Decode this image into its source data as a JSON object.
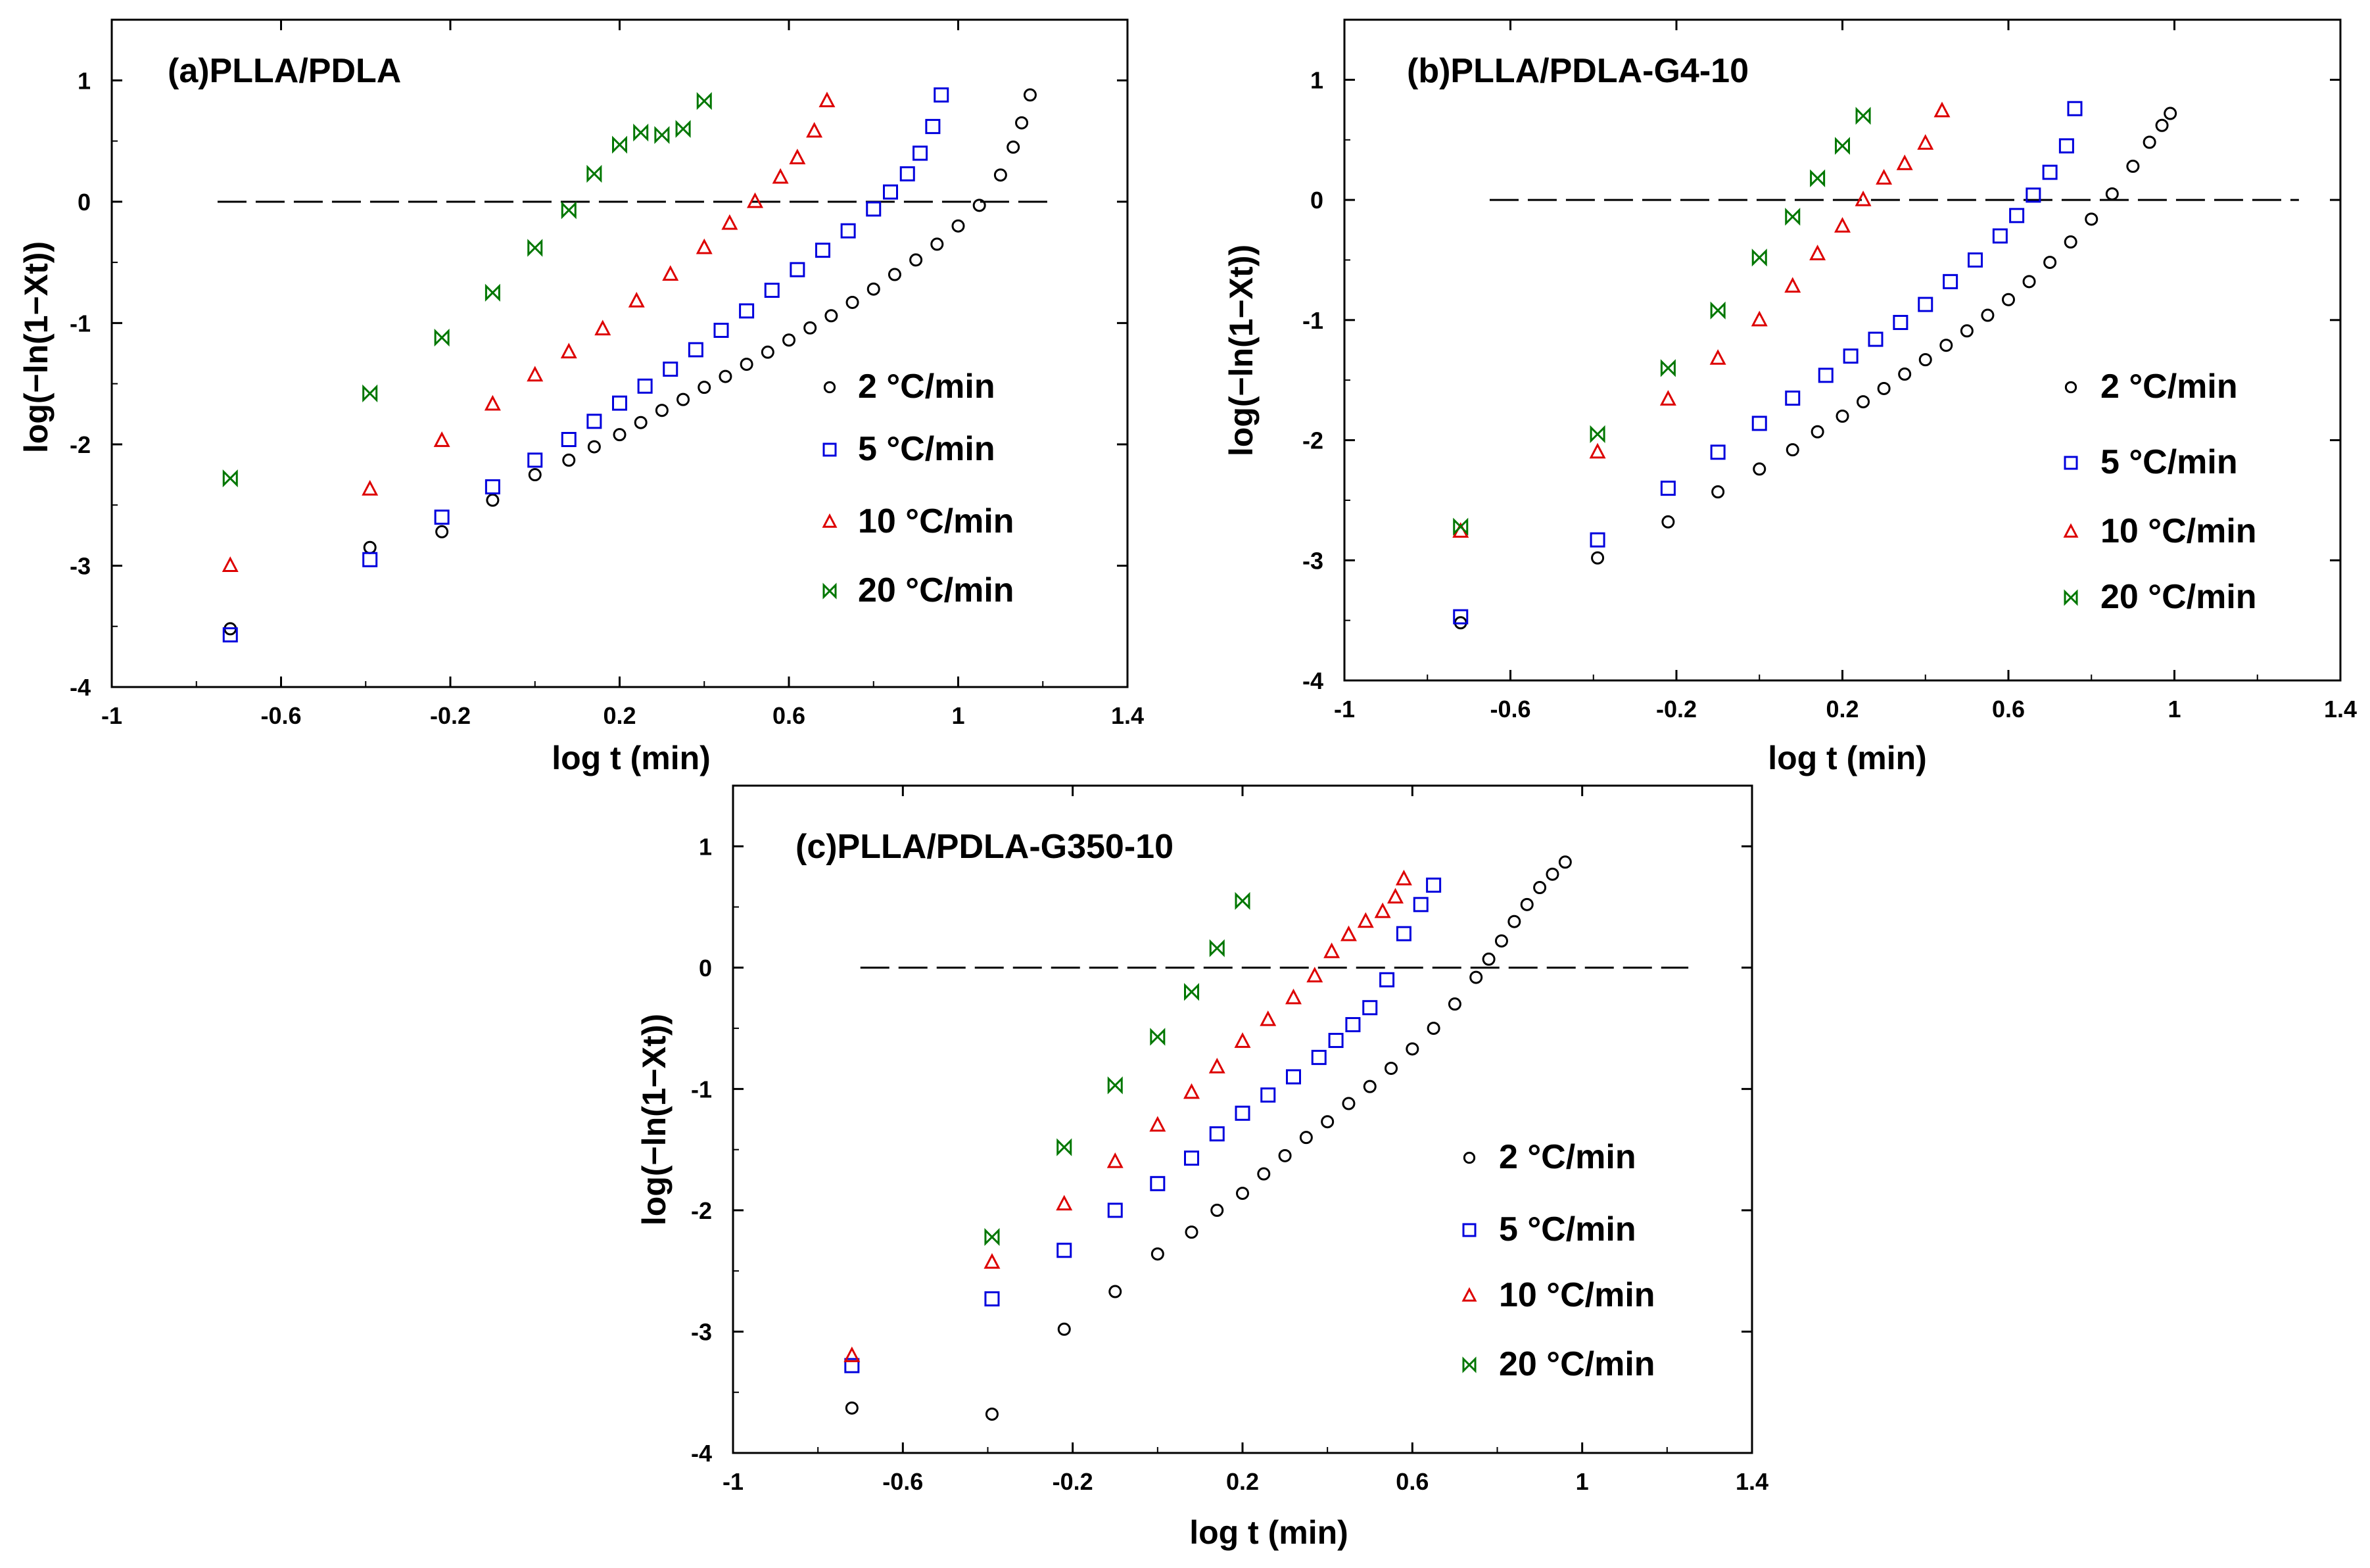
{
  "chart_data": [
    {
      "type": "scatter",
      "title": "(a)PLLA/PDLA",
      "xlabel": "log t (min)",
      "ylabel": "log(−ln(1−Xt))",
      "xlim": [
        -1,
        1.4
      ],
      "ylim": [
        -4,
        1.5
      ],
      "xticks": [
        -1,
        -0.6,
        -0.2,
        0.2,
        0.6,
        1,
        1.4
      ],
      "xtick_labels": [
        "-1",
        "-0.6",
        "-0.2",
        "0.2",
        "0.6",
        "1",
        "1.4"
      ],
      "yticks": [
        -4,
        -3,
        -2,
        -1,
        0,
        1
      ],
      "ytick_labels": [
        "-4",
        "-3",
        "-2",
        "-1",
        "0",
        "1"
      ],
      "reference_line": {
        "y": 0,
        "x_start": -0.75,
        "x_end": 1.22,
        "style": "dashed"
      },
      "legend_position": "right",
      "series": [
        {
          "name": "2 °C/min",
          "marker": "circle",
          "color": "#000000",
          "x": [
            -0.72,
            -0.39,
            -0.22,
            -0.1,
            0.0,
            0.08,
            0.14,
            0.2,
            0.25,
            0.3,
            0.35,
            0.4,
            0.45,
            0.5,
            0.55,
            0.6,
            0.65,
            0.7,
            0.75,
            0.8,
            0.85,
            0.9,
            0.95,
            1.0,
            1.05,
            1.1,
            1.13,
            1.15,
            1.17
          ],
          "y": [
            -3.52,
            -2.85,
            -2.72,
            -2.46,
            -2.25,
            -2.13,
            -2.02,
            -1.92,
            -1.82,
            -1.72,
            -1.63,
            -1.53,
            -1.44,
            -1.34,
            -1.24,
            -1.14,
            -1.04,
            -0.94,
            -0.83,
            -0.72,
            -0.6,
            -0.48,
            -0.35,
            -0.2,
            -0.03,
            0.22,
            0.45,
            0.65,
            0.88
          ]
        },
        {
          "name": "5 °C/min",
          "marker": "square",
          "color": "#0000dd",
          "x": [
            -0.72,
            -0.39,
            -0.22,
            -0.1,
            0.0,
            0.08,
            0.14,
            0.2,
            0.26,
            0.32,
            0.38,
            0.44,
            0.5,
            0.56,
            0.62,
            0.68,
            0.74,
            0.8,
            0.84,
            0.88,
            0.91,
            0.94,
            0.96
          ],
          "y": [
            -3.57,
            -2.95,
            -2.6,
            -2.35,
            -2.13,
            -1.96,
            -1.81,
            -1.66,
            -1.52,
            -1.38,
            -1.22,
            -1.06,
            -0.9,
            -0.73,
            -0.56,
            -0.4,
            -0.24,
            -0.06,
            0.08,
            0.23,
            0.4,
            0.62,
            0.88
          ]
        },
        {
          "name": "10 °C/min",
          "marker": "triangle",
          "color": "#dd0000",
          "x": [
            -0.72,
            -0.39,
            -0.22,
            -0.1,
            0.0,
            0.08,
            0.16,
            0.24,
            0.32,
            0.4,
            0.46,
            0.52,
            0.58,
            0.62,
            0.66,
            0.69
          ],
          "y": [
            -3.0,
            -2.37,
            -1.97,
            -1.67,
            -1.43,
            -1.24,
            -1.05,
            -0.82,
            -0.6,
            -0.38,
            -0.18,
            0.0,
            0.2,
            0.36,
            0.58,
            0.83
          ]
        },
        {
          "name": "20 °C/min",
          "marker": "bowtie",
          "color": "#007700",
          "x": [
            -0.72,
            -0.39,
            -0.22,
            -0.1,
            0.0,
            0.08,
            0.14,
            0.2,
            0.25,
            0.3,
            0.35,
            0.4
          ],
          "y": [
            -2.28,
            -1.58,
            -1.12,
            -0.75,
            -0.38,
            -0.07,
            0.23,
            0.47,
            0.57,
            0.55,
            0.6,
            0.83
          ]
        }
      ]
    },
    {
      "type": "scatter",
      "title": "(b)PLLA/PDLA-G4-10",
      "xlabel": "log t (min)",
      "ylabel": "log(−ln(1−Xt))",
      "xlim": [
        -1,
        1.4
      ],
      "ylim": [
        -4,
        1.5
      ],
      "xticks": [
        -1,
        -0.6,
        -0.2,
        0.2,
        0.6,
        1,
        1.4
      ],
      "xtick_labels": [
        "-1",
        "-0.6",
        "-0.2",
        "0.2",
        "0.6",
        "1",
        "1.4"
      ],
      "yticks": [
        -4,
        -3,
        -2,
        -1,
        0,
        1
      ],
      "ytick_labels": [
        "-4",
        "-3",
        "-2",
        "-1",
        "0",
        "1"
      ],
      "reference_line": {
        "y": 0,
        "x_start": -0.65,
        "x_end": 1.3,
        "style": "dashed"
      },
      "legend_position": "right",
      "series": [
        {
          "name": "2 °C/min",
          "marker": "circle",
          "color": "#000000",
          "x": [
            -0.72,
            -0.39,
            -0.22,
            -0.1,
            0.0,
            0.08,
            0.14,
            0.2,
            0.25,
            0.3,
            0.35,
            0.4,
            0.45,
            0.5,
            0.55,
            0.6,
            0.65,
            0.7,
            0.75,
            0.8,
            0.85,
            0.9,
            0.94,
            0.97,
            0.99
          ],
          "y": [
            -3.52,
            -2.98,
            -2.68,
            -2.43,
            -2.24,
            -2.08,
            -1.93,
            -1.8,
            -1.68,
            -1.57,
            -1.45,
            -1.33,
            -1.21,
            -1.09,
            -0.96,
            -0.83,
            -0.68,
            -0.52,
            -0.35,
            -0.16,
            0.05,
            0.28,
            0.48,
            0.62,
            0.72
          ]
        },
        {
          "name": "5 °C/min",
          "marker": "square",
          "color": "#0000dd",
          "x": [
            -0.72,
            -0.39,
            -0.22,
            -0.1,
            0.0,
            0.08,
            0.16,
            0.22,
            0.28,
            0.34,
            0.4,
            0.46,
            0.52,
            0.58,
            0.62,
            0.66,
            0.7,
            0.74,
            0.76
          ],
          "y": [
            -3.47,
            -2.83,
            -2.4,
            -2.1,
            -1.86,
            -1.65,
            -1.46,
            -1.3,
            -1.16,
            -1.02,
            -0.87,
            -0.68,
            -0.5,
            -0.3,
            -0.13,
            0.04,
            0.23,
            0.45,
            0.76
          ]
        },
        {
          "name": "10 °C/min",
          "marker": "triangle",
          "color": "#dd0000",
          "x": [
            -0.72,
            -0.39,
            -0.22,
            -0.1,
            0.0,
            0.08,
            0.14,
            0.2,
            0.25,
            0.3,
            0.35,
            0.4,
            0.44
          ],
          "y": [
            -2.76,
            -2.1,
            -1.66,
            -1.32,
            -1.0,
            -0.72,
            -0.45,
            -0.22,
            0.0,
            0.18,
            0.3,
            0.47,
            0.74
          ]
        },
        {
          "name": "20 °C/min",
          "marker": "bowtie",
          "color": "#007700",
          "x": [
            -0.72,
            -0.39,
            -0.22,
            -0.1,
            0.0,
            0.08,
            0.14,
            0.2,
            0.25
          ],
          "y": [
            -2.72,
            -1.95,
            -1.4,
            -0.92,
            -0.48,
            -0.14,
            0.18,
            0.45,
            0.7
          ]
        }
      ]
    },
    {
      "type": "scatter",
      "title": "(c)PLLA/PDLA-G350-10",
      "xlabel": "log t (min)",
      "ylabel": "log(−ln(1−Xt))",
      "xlim": [
        -1,
        1.4
      ],
      "ylim": [
        -4,
        1.5
      ],
      "xticks": [
        -1,
        -0.6,
        -0.2,
        0.2,
        0.6,
        1,
        1.4
      ],
      "xtick_labels": [
        "-1",
        "-0.6",
        "-0.2",
        "0.2",
        "0.6",
        "1",
        "1.4"
      ],
      "yticks": [
        -4,
        -3,
        -2,
        -1,
        0,
        1
      ],
      "ytick_labels": [
        "-4",
        "-3",
        "-2",
        "-1",
        "0",
        "1"
      ],
      "reference_line": {
        "y": 0,
        "x_start": -0.7,
        "x_end": 1.25,
        "style": "dashed"
      },
      "legend_position": "right",
      "series": [
        {
          "name": "2 °C/min",
          "marker": "circle",
          "color": "#000000",
          "x": [
            -0.72,
            -0.39,
            -0.22,
            -0.1,
            0.0,
            0.08,
            0.14,
            0.2,
            0.25,
            0.3,
            0.35,
            0.4,
            0.45,
            0.5,
            0.55,
            0.6,
            0.65,
            0.7,
            0.75,
            0.78,
            0.81,
            0.84,
            0.87,
            0.9,
            0.93,
            0.96
          ],
          "y": [
            -3.63,
            -3.68,
            -2.98,
            -2.67,
            -2.36,
            -2.18,
            -2.0,
            -1.86,
            -1.7,
            -1.55,
            -1.4,
            -1.27,
            -1.12,
            -0.98,
            -0.83,
            -0.67,
            -0.5,
            -0.3,
            -0.08,
            0.07,
            0.22,
            0.38,
            0.52,
            0.66,
            0.77,
            0.87
          ]
        },
        {
          "name": "5 °C/min",
          "marker": "square",
          "color": "#0000dd",
          "x": [
            -0.72,
            -0.39,
            -0.22,
            -0.1,
            0.0,
            0.08,
            0.14,
            0.2,
            0.26,
            0.32,
            0.38,
            0.42,
            0.46,
            0.5,
            0.54,
            0.58,
            0.62,
            0.65
          ],
          "y": [
            -3.28,
            -2.73,
            -2.33,
            -2.0,
            -1.78,
            -1.57,
            -1.37,
            -1.2,
            -1.05,
            -0.9,
            -0.74,
            -0.6,
            -0.47,
            -0.33,
            -0.1,
            0.28,
            0.52,
            0.68
          ]
        },
        {
          "name": "10 °C/min",
          "marker": "triangle",
          "color": "#dd0000",
          "x": [
            -0.72,
            -0.39,
            -0.22,
            -0.1,
            0.0,
            0.08,
            0.14,
            0.2,
            0.26,
            0.32,
            0.37,
            0.41,
            0.45,
            0.49,
            0.53,
            0.56,
            0.58
          ],
          "y": [
            -3.2,
            -2.43,
            -1.95,
            -1.6,
            -1.3,
            -1.03,
            -0.82,
            -0.61,
            -0.43,
            -0.25,
            -0.07,
            0.13,
            0.27,
            0.38,
            0.46,
            0.58,
            0.73
          ]
        },
        {
          "name": "20 °C/min",
          "marker": "bowtie",
          "color": "#007700",
          "x": [
            -0.39,
            -0.22,
            -0.1,
            0.0,
            0.08,
            0.14,
            0.2
          ],
          "y": [
            -2.22,
            -1.48,
            -0.97,
            -0.57,
            -0.2,
            0.16,
            0.55
          ]
        }
      ]
    }
  ]
}
